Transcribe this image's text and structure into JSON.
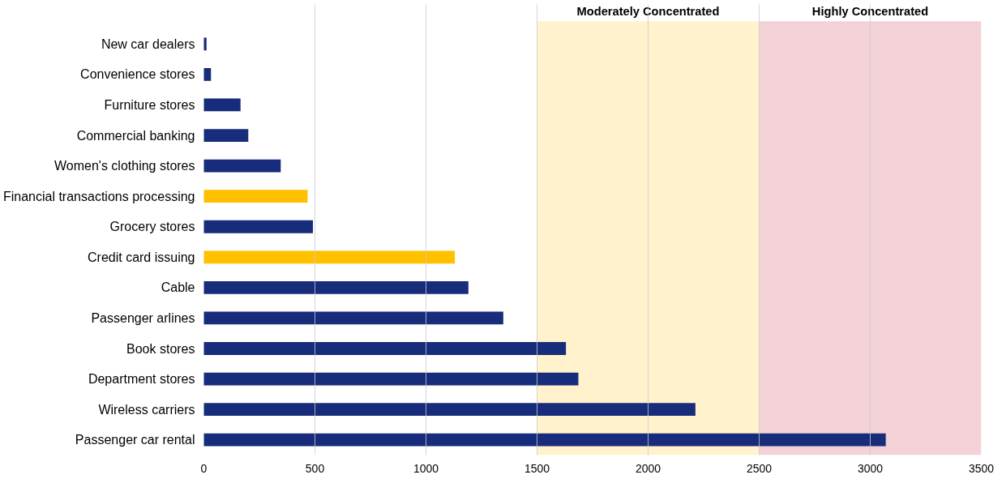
{
  "chart_data": {
    "type": "bar",
    "orientation": "horizontal",
    "categories": [
      "New car dealers",
      "Convenience stores",
      "Furniture stores",
      "Commercial banking",
      "Women's clothing stores",
      "Financial transactions processing",
      "Grocery stores",
      "Credit card issuing",
      "Cable",
      "Passenger arlines",
      "Book stores",
      "Department stores",
      "Wireless carriers",
      "Passenger car rental"
    ],
    "values": [
      12,
      32,
      165,
      200,
      346,
      467,
      491,
      1130,
      1191,
      1348,
      1630,
      1686,
      2213,
      3070
    ],
    "colors": [
      "#172c7a",
      "#172c7a",
      "#172c7a",
      "#172c7a",
      "#172c7a",
      "#ffc000",
      "#172c7a",
      "#ffc000",
      "#172c7a",
      "#172c7a",
      "#172c7a",
      "#172c7a",
      "#172c7a",
      "#172c7a"
    ],
    "xlim": [
      0,
      3500
    ],
    "xticks": [
      0,
      500,
      1000,
      1500,
      2000,
      2500,
      3000,
      3500
    ],
    "grid": "x",
    "bands": [
      {
        "axis": "x",
        "from": 1500,
        "to": 2500,
        "label": "Moderately Concentrated",
        "color": "#fff2cc"
      },
      {
        "axis": "x",
        "from": 2500,
        "to": 3500,
        "label": "Highly Concentrated",
        "color": "#f2d2d7"
      }
    ]
  }
}
